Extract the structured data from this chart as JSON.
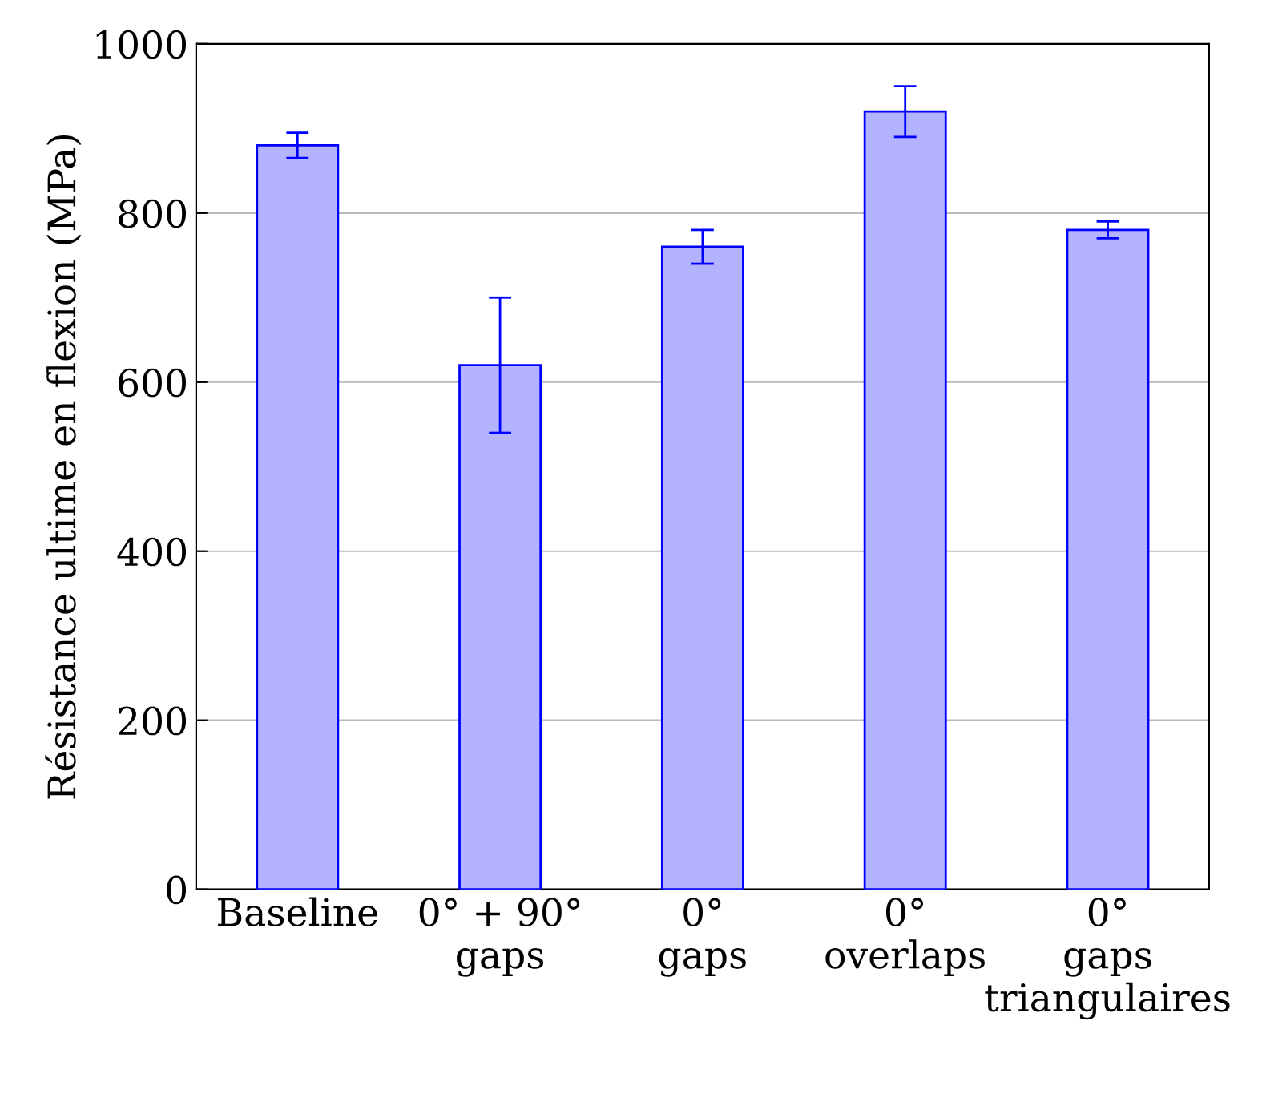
{
  "chart_data": {
    "type": "bar",
    "ylabel": "Résistance ultime en flexion (MPa)",
    "categories": [
      "Baseline",
      "0° + 90°\ngaps",
      "0°\ngaps",
      "0°\noverlaps",
      "0°\ngaps\ntriangulaires"
    ],
    "values": [
      880,
      620,
      760,
      920,
      780
    ],
    "errors": [
      15,
      80,
      20,
      30,
      10
    ],
    "color": "#b3b3ff",
    "ylim": [
      0,
      1000
    ],
    "yticks": [
      0,
      200,
      400,
      600,
      800,
      1000
    ],
    "grid": "y"
  }
}
